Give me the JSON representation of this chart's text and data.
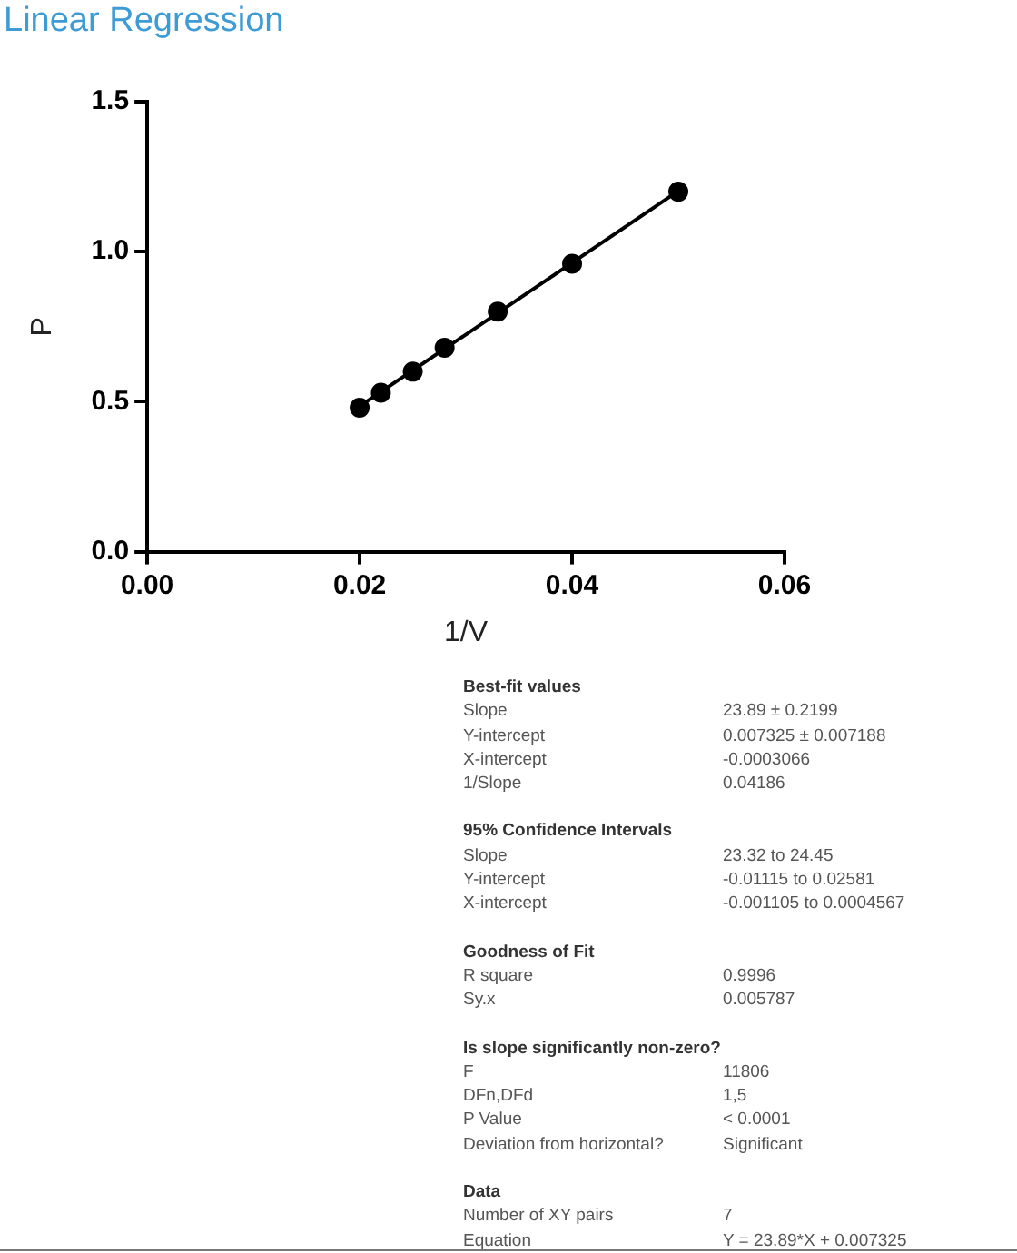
{
  "chart_data": {
    "type": "scatter",
    "title": "Linear Regression",
    "xlabel": "1/V",
    "ylabel": "P",
    "xlim": [
      0,
      0.06
    ],
    "xticks": [
      {
        "value": 0,
        "label": "0.00"
      },
      0.02,
      0.04,
      0.06
    ],
    "ylim": [
      0,
      1.5
    ],
    "yticks": [
      {
        "value": 0,
        "label": "0.0"
      },
      0.5,
      {
        "value": 1,
        "label": "1.0"
      },
      1.5
    ],
    "grid": false,
    "legend": false,
    "series": [
      {
        "type": "scatter",
        "color": "#000000",
        "marker": "circle",
        "x": [
          0.02,
          0.022,
          0.025,
          0.028,
          0.033,
          0.04,
          0.05
        ],
        "values": [
          0.48,
          0.53,
          0.6,
          0.68,
          0.8,
          0.96,
          1.2
        ]
      },
      {
        "type": "line",
        "color": "#000000",
        "marker": "none",
        "line_style": "solid",
        "x": [
          0.02,
          0.05
        ],
        "values": [
          0.485,
          1.202
        ]
      }
    ],
    "annotations": [
      "Best-fit values",
      "Slope\t23.89 ± 0.2199",
      "Y-intercept\t0.007325 ± 0.007188",
      "X-intercept\t-0.0003066",
      "1/Slope\t0.04186",
      "95% Confidence Intervals",
      "Slope\t23.32 to 24.45",
      "Y-intercept\t-0.01115 to 0.02581",
      "X-intercept\t-0.001105 to 0.0004567",
      "Goodness of Fit",
      "R square\t0.9996",
      "Sy.x\t0.005787",
      "Is slope significantly non-zero?",
      "F\t11806",
      "DFn,DFd\t1,5",
      "P Value\t< 0.0001",
      "Deviation from horizontal?\tSignificant",
      "Data",
      "Number of XY pairs\t7",
      "Equation\tY = 23.89*X + 0.007325"
    ]
  }
}
